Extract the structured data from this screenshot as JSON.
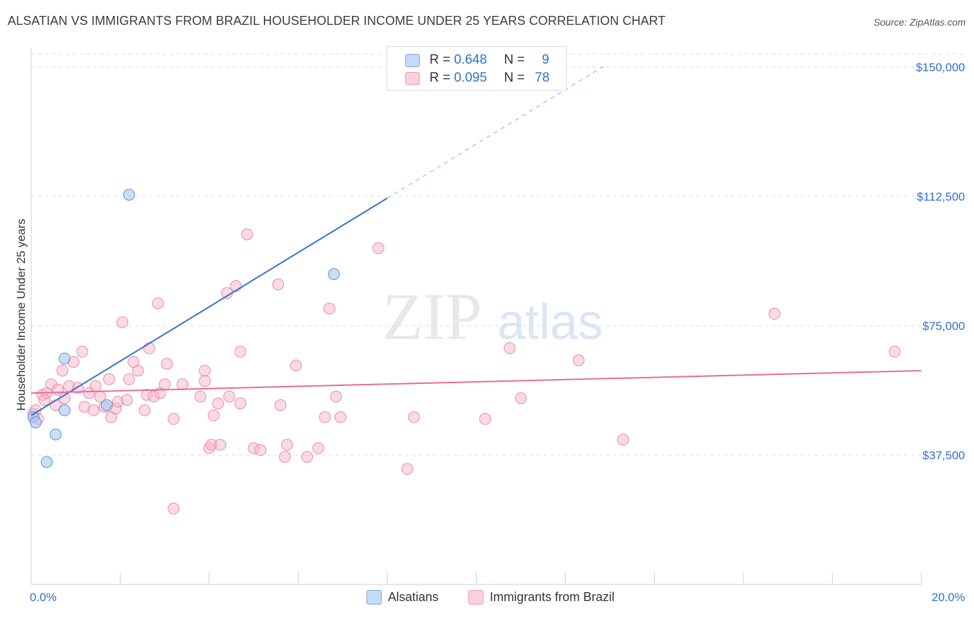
{
  "title": "ALSATIAN VS IMMIGRANTS FROM BRAZIL HOUSEHOLDER INCOME UNDER 25 YEARS CORRELATION CHART",
  "source": "Source: ZipAtlas.com",
  "watermark": {
    "zip": "ZIP",
    "atlas": "atlas"
  },
  "legend": {
    "rows": [
      {
        "r_label": "R =",
        "r_value": "0.648",
        "n_label": "N =",
        "n_value": "9"
      },
      {
        "r_label": "R =",
        "r_value": "0.095",
        "n_label": "N =",
        "n_value": "78"
      }
    ]
  },
  "bottom_legend": {
    "alsatians": "Alsatians",
    "brazil": "Immigrants from Brazil"
  },
  "colors": {
    "alsatian_fill": "#a8c8f0",
    "alsatian_stroke": "#5b8fd6",
    "alsatian_line": "#3374d0",
    "brazil_fill": "#f7b6c9",
    "brazil_stroke": "#e88aa8",
    "brazil_line": "#e86a96",
    "axis_label": "#2e70d0"
  },
  "chart_data": {
    "type": "scatter",
    "title": "ALSATIAN VS IMMIGRANTS FROM BRAZIL HOUSEHOLDER INCOME UNDER 25 YEARS CORRELATION CHART",
    "xlabel": "",
    "ylabel": "Householder Income Under 25 years",
    "xlim": [
      0,
      20
    ],
    "ylim": [
      0,
      152000
    ],
    "x_tick_labels": [
      "0.0%",
      "20.0%"
    ],
    "y_ticks": [
      {
        "value": 37500,
        "label": "$37,500"
      },
      {
        "value": 75000,
        "label": "$75,000"
      },
      {
        "value": 112500,
        "label": "$112,500"
      },
      {
        "value": 150000,
        "label": "$150,000"
      }
    ],
    "grid": true,
    "series": [
      {
        "name": "Alsatians",
        "points": [
          [
            0.05,
            48500
          ],
          [
            0.1,
            47000
          ],
          [
            0.35,
            35500
          ],
          [
            0.55,
            43500
          ],
          [
            0.75,
            50500
          ],
          [
            0.75,
            65500
          ],
          [
            1.7,
            52000
          ],
          [
            2.2,
            113000
          ],
          [
            6.8,
            90000
          ]
        ],
        "trend": {
          "x0": 0,
          "y0": 49000,
          "x1": 8.0,
          "y1": 112000,
          "dash_x1": 12.9,
          "dash_y1": 150500
        }
      },
      {
        "name": "Immigrants from Brazil",
        "points": [
          [
            0.05,
            49500
          ],
          [
            0.1,
            50500
          ],
          [
            0.15,
            48000
          ],
          [
            0.25,
            55000
          ],
          [
            0.35,
            55500
          ],
          [
            0.45,
            58000
          ],
          [
            0.55,
            52000
          ],
          [
            0.6,
            56500
          ],
          [
            0.7,
            62000
          ],
          [
            0.75,
            54000
          ],
          [
            0.85,
            57500
          ],
          [
            0.95,
            64500
          ],
          [
            1.05,
            57000
          ],
          [
            1.15,
            67500
          ],
          [
            1.2,
            51500
          ],
          [
            1.3,
            55500
          ],
          [
            1.4,
            50500
          ],
          [
            1.45,
            57500
          ],
          [
            1.55,
            54500
          ],
          [
            1.65,
            51500
          ],
          [
            1.75,
            59500
          ],
          [
            1.8,
            48500
          ],
          [
            1.9,
            51000
          ],
          [
            1.95,
            53000
          ],
          [
            2.05,
            76000
          ],
          [
            2.15,
            53500
          ],
          [
            2.2,
            59500
          ],
          [
            2.3,
            64500
          ],
          [
            2.4,
            62000
          ],
          [
            2.55,
            50500
          ],
          [
            2.6,
            55000
          ],
          [
            2.65,
            68500
          ],
          [
            2.75,
            54500
          ],
          [
            2.85,
            81500
          ],
          [
            2.9,
            55500
          ],
          [
            3.0,
            58000
          ],
          [
            3.05,
            64000
          ],
          [
            3.2,
            48000
          ],
          [
            3.2,
            22000
          ],
          [
            3.4,
            58000
          ],
          [
            3.8,
            54500
          ],
          [
            3.9,
            59000
          ],
          [
            3.9,
            62000
          ],
          [
            4.0,
            39500
          ],
          [
            4.05,
            40500
          ],
          [
            4.1,
            49000
          ],
          [
            4.2,
            52500
          ],
          [
            4.25,
            40500
          ],
          [
            4.4,
            84500
          ],
          [
            4.45,
            54500
          ],
          [
            4.6,
            86500
          ],
          [
            4.7,
            67500
          ],
          [
            4.7,
            52500
          ],
          [
            4.85,
            101500
          ],
          [
            5.0,
            39500
          ],
          [
            5.15,
            39000
          ],
          [
            5.55,
            87000
          ],
          [
            5.6,
            52000
          ],
          [
            5.7,
            37000
          ],
          [
            5.75,
            40500
          ],
          [
            5.95,
            63500
          ],
          [
            6.2,
            37000
          ],
          [
            6.45,
            39500
          ],
          [
            6.6,
            48500
          ],
          [
            6.7,
            80000
          ],
          [
            6.85,
            54500
          ],
          [
            6.95,
            48500
          ],
          [
            7.8,
            97500
          ],
          [
            8.45,
            33500
          ],
          [
            8.6,
            48500
          ],
          [
            10.2,
            48000
          ],
          [
            10.75,
            68500
          ],
          [
            11.0,
            54000
          ],
          [
            12.3,
            65000
          ],
          [
            13.3,
            42000
          ],
          [
            16.7,
            78500
          ],
          [
            19.4,
            67500
          ],
          [
            0.3,
            53500
          ]
        ],
        "trend": {
          "x0": 0,
          "y0": 55500,
          "x1": 20,
          "y1": 62000
        }
      }
    ]
  }
}
